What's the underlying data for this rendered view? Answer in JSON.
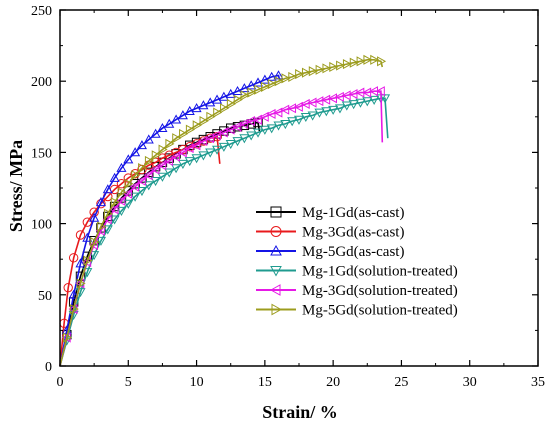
{
  "chart_data": {
    "type": "line",
    "xlabel": "Strain/ %",
    "ylabel": "Stress/ MPa",
    "xlim": [
      0,
      35
    ],
    "ylim": [
      0,
      250
    ],
    "xticks": [
      0,
      5,
      10,
      15,
      20,
      25,
      30,
      35
    ],
    "yticks": [
      0,
      50,
      100,
      150,
      200,
      250
    ],
    "legend_position": "bottom-right",
    "grid": false,
    "series": [
      {
        "name": "Mg-1Gd(as-cast)",
        "color": "#000000",
        "marker": "square",
        "x": [
          0,
          0.5,
          1,
          1.5,
          2,
          2.5,
          3,
          3.5,
          4,
          4.5,
          5,
          5.5,
          6,
          6.5,
          7,
          7.5,
          8,
          8.5,
          9,
          9.5,
          10,
          10.5,
          11,
          11.5,
          12,
          12.5,
          13,
          13.5,
          14,
          14.5
        ],
        "y": [
          0,
          22,
          45,
          63,
          77,
          88,
          97,
          105,
          112,
          118,
          123,
          128,
          132,
          136,
          140,
          143,
          146,
          149,
          152,
          155,
          157,
          159,
          161,
          163,
          165,
          167,
          168,
          169,
          170,
          171
        ],
        "fracture": [
          [
            14.5,
            171
          ],
          [
            14.6,
            165
          ]
        ]
      },
      {
        "name": "Mg-3Gd(as-cast)",
        "color": "#e8191c",
        "marker": "circle",
        "x": [
          0,
          0.3,
          0.6,
          1,
          1.5,
          2,
          2.5,
          3,
          3.5,
          4,
          4.5,
          5,
          5.5,
          6,
          6.5,
          7,
          7.5,
          8,
          8.5,
          9,
          9.5,
          10,
          10.5,
          11,
          11.5
        ],
        "y": [
          0,
          30,
          55,
          76,
          92,
          101,
          108,
          114,
          119,
          124,
          128,
          132,
          135,
          138,
          141,
          143,
          146,
          148,
          150,
          152,
          154,
          156,
          158,
          160,
          161
        ],
        "fracture": [
          [
            11.5,
            161
          ],
          [
            11.7,
            142
          ]
        ]
      },
      {
        "name": "Mg-5Gd(as-cast)",
        "color": "#1414e6",
        "marker": "triangle-up",
        "x": [
          0,
          0.5,
          1,
          1.5,
          2,
          2.5,
          3,
          3.5,
          4,
          4.5,
          5,
          5.5,
          6,
          6.5,
          7,
          7.5,
          8,
          8.5,
          9,
          9.5,
          10,
          10.5,
          11,
          11.5,
          12,
          12.5,
          13,
          13.5,
          14,
          14.5,
          15,
          15.5,
          16
        ],
        "y": [
          0,
          25,
          50,
          72,
          90,
          104,
          115,
          124,
          132,
          139,
          145,
          150,
          155,
          159,
          163,
          167,
          170,
          173,
          176,
          179,
          181,
          183,
          185,
          187,
          189,
          191,
          193,
          195,
          197,
          199,
          201,
          203,
          204
        ],
        "fracture": [
          [
            16,
            204
          ],
          [
            16.1,
            200
          ]
        ]
      },
      {
        "name": "Mg-1Gd(solution-treated)",
        "color": "#1f9b8f",
        "marker": "triangle-down",
        "x": [
          0,
          0.5,
          1,
          1.5,
          2,
          2.5,
          3,
          3.5,
          4,
          4.5,
          5,
          5.5,
          6,
          6.5,
          7,
          7.5,
          8,
          8.5,
          9,
          9.5,
          10,
          10.5,
          11,
          11.5,
          12,
          12.5,
          13,
          13.5,
          14,
          14.5,
          15,
          15.5,
          16,
          16.5,
          17,
          17.5,
          18,
          18.5,
          19,
          19.5,
          20,
          20.5,
          21,
          21.5,
          22,
          22.5,
          23,
          23.5,
          23.8
        ],
        "y": [
          0,
          18,
          36,
          52,
          66,
          78,
          88,
          96,
          103,
          109,
          114,
          119,
          123,
          127,
          130,
          133,
          136,
          139,
          142,
          144,
          146,
          148,
          150,
          152,
          154,
          156,
          158,
          160,
          162,
          164,
          166,
          167,
          169,
          170,
          172,
          173,
          175,
          176,
          178,
          179,
          180,
          181,
          183,
          184,
          185,
          186,
          187,
          188,
          188
        ],
        "fracture": [
          [
            23.8,
            188
          ],
          [
            24.0,
            160
          ]
        ]
      },
      {
        "name": "Mg-3Gd(solution-treated)",
        "color": "#e619e6",
        "marker": "triangle-left",
        "x": [
          0,
          0.5,
          1,
          1.5,
          2,
          2.5,
          3,
          3.5,
          4,
          4.5,
          5,
          5.5,
          6,
          6.5,
          7,
          7.5,
          8,
          8.5,
          9,
          9.5,
          10,
          10.5,
          11,
          11.5,
          12,
          12.5,
          13,
          13.5,
          14,
          14.5,
          15,
          15.5,
          16,
          16.5,
          17,
          17.5,
          18,
          18.5,
          19,
          19.5,
          20,
          20.5,
          21,
          21.5,
          22,
          22.5,
          23,
          23.5
        ],
        "y": [
          0,
          20,
          40,
          58,
          73,
          85,
          95,
          103,
          110,
          116,
          121,
          126,
          130,
          134,
          138,
          141,
          144,
          147,
          150,
          153,
          155,
          158,
          160,
          162,
          164,
          166,
          168,
          170,
          172,
          173,
          175,
          177,
          178,
          180,
          181,
          182,
          184,
          185,
          186,
          187,
          188,
          189,
          190,
          191,
          192,
          192,
          193,
          193
        ],
        "fracture": [
          [
            23.5,
            193
          ],
          [
            23.6,
            157
          ]
        ]
      },
      {
        "name": "Mg-5Gd(solution-treated)",
        "color": "#9c9c1e",
        "marker": "triangle-right",
        "x": [
          0,
          0.5,
          1,
          1.5,
          2,
          2.5,
          3,
          3.5,
          4,
          4.5,
          5,
          5.5,
          6,
          6.5,
          7,
          7.5,
          8,
          8.5,
          9,
          9.5,
          10,
          10.5,
          11,
          11.5,
          12,
          12.5,
          13,
          13.5,
          14,
          14.5,
          15,
          15.5,
          16,
          16.5,
          17,
          17.5,
          18,
          18.5,
          19,
          19.5,
          20,
          20.5,
          21,
          21.5,
          22,
          22.5,
          23,
          23.5
        ],
        "y": [
          0,
          20,
          40,
          58,
          74,
          87,
          98,
          107,
          115,
          122,
          128,
          134,
          139,
          144,
          148,
          152,
          156,
          160,
          163,
          166,
          169,
          172,
          175,
          178,
          181,
          184,
          187,
          190,
          192,
          194,
          196,
          198,
          200,
          202,
          203,
          205,
          206,
          207,
          208,
          209,
          210,
          211,
          212,
          213,
          214,
          215,
          215,
          214
        ],
        "fracture": [
          [
            23.5,
            214
          ],
          [
            23.6,
            210
          ]
        ]
      }
    ]
  }
}
